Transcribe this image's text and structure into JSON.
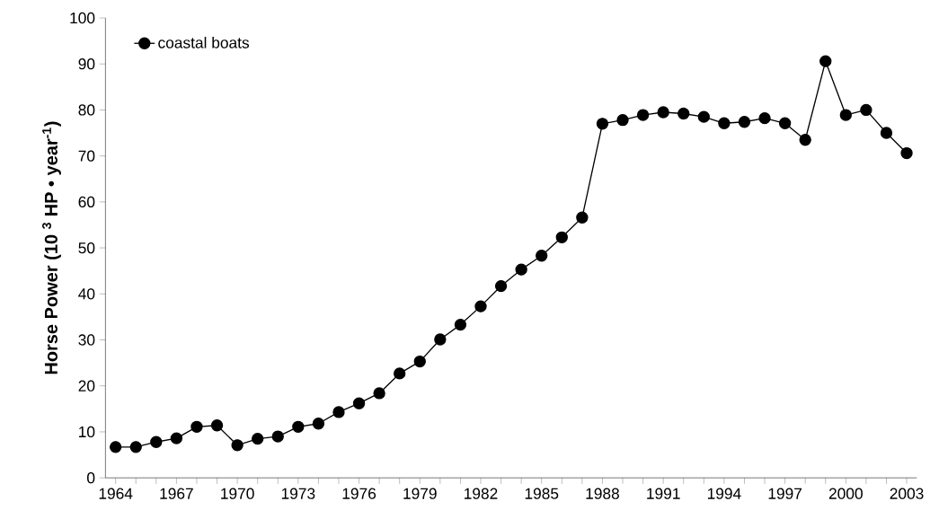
{
  "chart_data": {
    "type": "line",
    "ylabel": "**Horse Power (10 $^{3}$ HP • year$^{-1}$)**",
    "x": [
      1964,
      1965,
      1966,
      1967,
      1968,
      1969,
      1970,
      1971,
      1972,
      1973,
      1974,
      1975,
      1976,
      1977,
      1978,
      1979,
      1980,
      1981,
      1982,
      1983,
      1984,
      1985,
      1986,
      1987,
      1988,
      1989,
      1990,
      1991,
      1992,
      1993,
      1994,
      1995,
      1996,
      1997,
      1998,
      1999,
      2000,
      2001,
      2002,
      2003
    ],
    "series": [
      {
        "name": "coastal boats",
        "color": "#000000",
        "values": [
          6.7,
          6.7,
          7.8,
          8.6,
          11.1,
          11.4,
          7.1,
          8.5,
          9.0,
          11.1,
          11.8,
          14.3,
          16.2,
          18.4,
          22.7,
          25.3,
          30.1,
          33.3,
          37.3,
          41.7,
          45.3,
          48.3,
          52.3,
          56.6,
          77.0,
          77.8,
          78.9,
          79.5,
          79.2,
          78.5,
          77.1,
          77.4,
          78.2,
          77.1,
          73.5,
          90.6,
          78.9,
          80.0,
          75.0,
          70.6
        ]
      }
    ],
    "xlim": [
      1963.5,
      2003.5
    ],
    "xticks": [
      1964,
      1967,
      1970,
      1973,
      1976,
      1979,
      1982,
      1985,
      1988,
      1991,
      1994,
      1997,
      2000,
      2003
    ],
    "ylim": [
      0,
      100
    ],
    "yticks": [
      0,
      10,
      20,
      30,
      40,
      50,
      60,
      70,
      80,
      90,
      100
    ],
    "grid": false,
    "legend": "top left",
    "marker": "circle",
    "line_style": "solid"
  }
}
